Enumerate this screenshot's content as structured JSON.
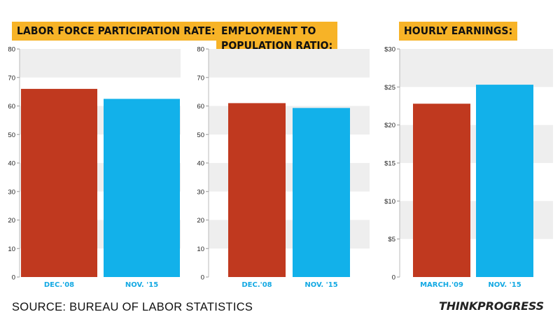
{
  "colors": {
    "red": "#c0391f",
    "blue": "#12b1ea",
    "band": "#eeeeee",
    "title_bg": "#f7b327"
  },
  "chart_data": [
    {
      "type": "bar",
      "title": "LABOR FORCE PARTICIPATION RATE:",
      "categories": [
        "DEC.'08",
        "NOV. '15"
      ],
      "values": [
        66,
        62.5
      ],
      "ylim": [
        0,
        80
      ],
      "yticks": [
        0,
        10,
        20,
        30,
        40,
        50,
        60,
        70,
        80
      ],
      "ytick_labels": [
        "0",
        "10",
        "20",
        "30",
        "40",
        "50",
        "60",
        "70",
        "80"
      ]
    },
    {
      "type": "bar",
      "title": "EMPLOYMENT TO POPULATION RATIO:",
      "title_lines": [
        "EMPLOYMENT TO",
        "POPULATION RATIO:"
      ],
      "categories": [
        "DEC.'08",
        "NOV. '15"
      ],
      "values": [
        61,
        59.3
      ],
      "ylim": [
        0,
        80
      ],
      "yticks": [
        0,
        10,
        20,
        30,
        40,
        50,
        60,
        70,
        80
      ],
      "ytick_labels": [
        "0",
        "10",
        "20",
        "30",
        "40",
        "50",
        "60",
        "70",
        "80"
      ]
    },
    {
      "type": "bar",
      "title": "HOURLY EARNINGS:",
      "categories": [
        "MARCH.'09",
        "NOV. '15"
      ],
      "values": [
        22.8,
        25.3
      ],
      "ylim": [
        0,
        30
      ],
      "yticks": [
        0,
        5,
        10,
        15,
        20,
        25,
        30
      ],
      "ytick_labels": [
        "0",
        "$5",
        "$10",
        "$15",
        "$20",
        "$25",
        "$30"
      ]
    }
  ],
  "footer": {
    "source": "SOURCE: BUREAU OF LABOR STATISTICS",
    "logo": "THINKPROGRESS"
  }
}
